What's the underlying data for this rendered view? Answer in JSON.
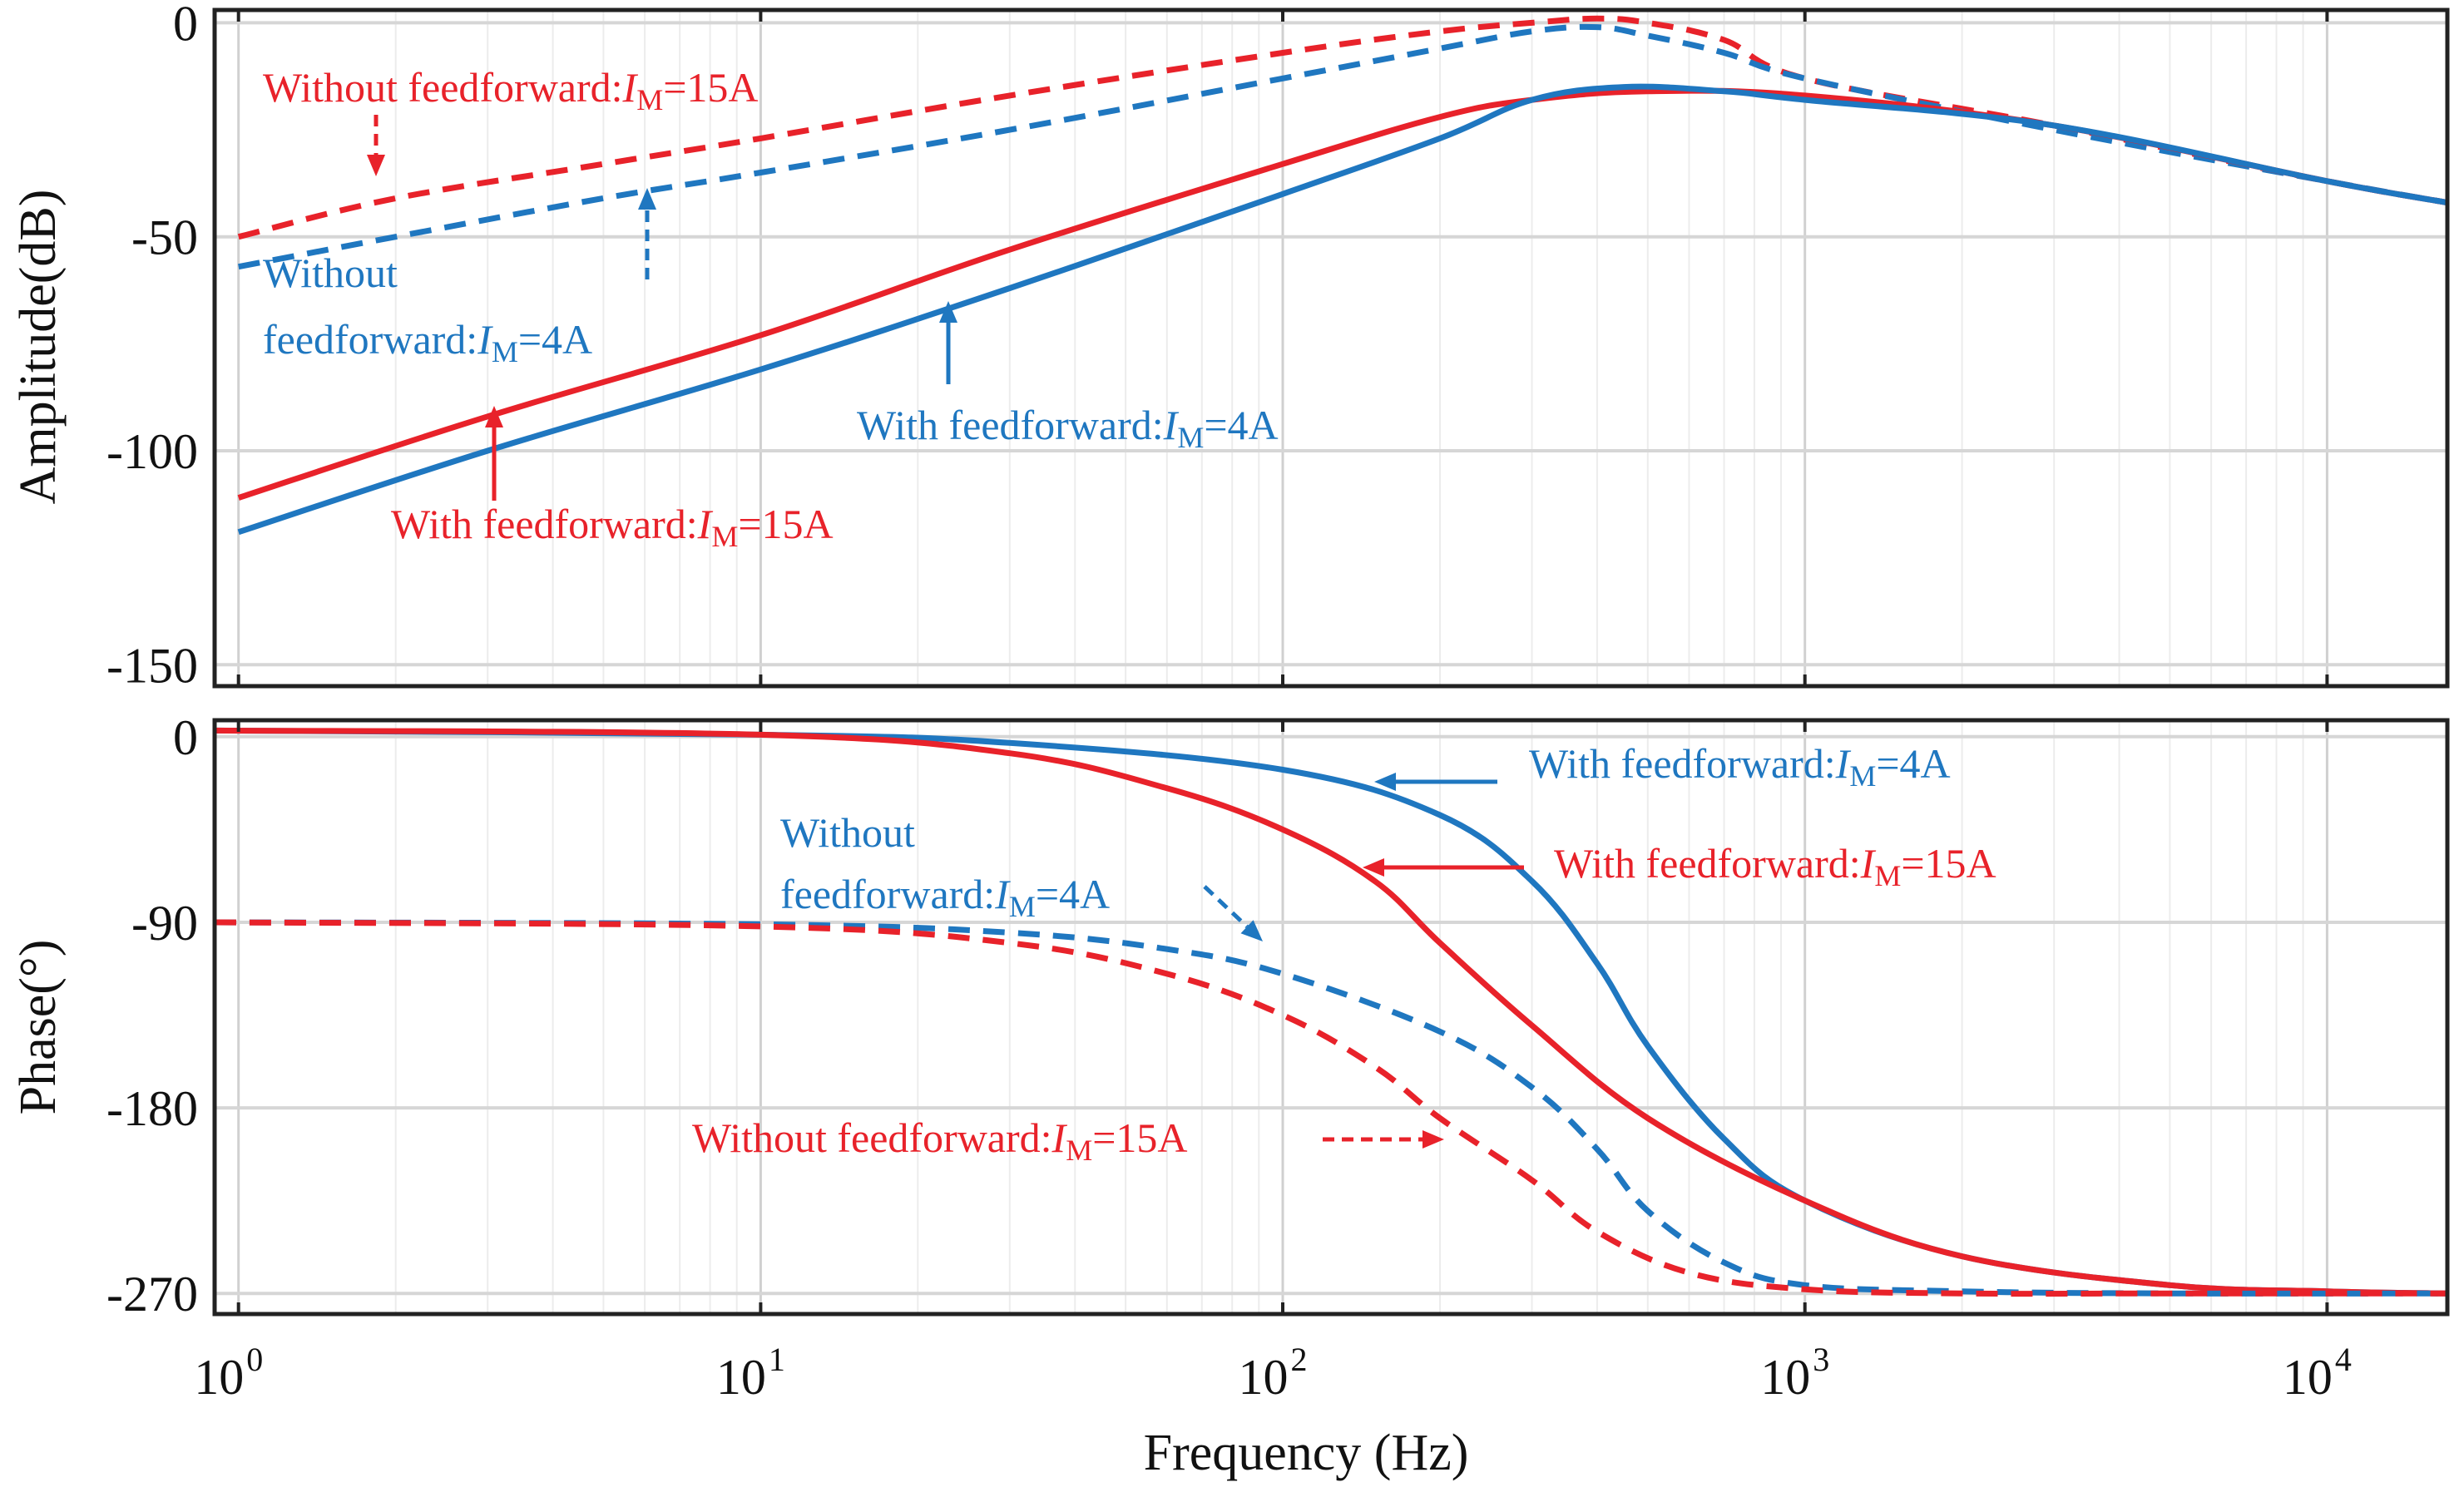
{
  "chart_data": [
    {
      "type": "line",
      "panel": "amplitude",
      "ylabel": "Amplitude(dB)",
      "xscale": "log",
      "xlim": [
        0.9,
        17000
      ],
      "ylim": [
        -155,
        3
      ],
      "yticks": [
        0,
        -50,
        -100,
        -150
      ],
      "ytick_labels": [
        "0",
        "-50",
        "-100",
        "-150"
      ],
      "grid": true,
      "series": [
        {
          "name": "Without feedforward: IM=15A",
          "color": "#e8222a",
          "dash": true,
          "x": [
            1,
            2,
            5,
            10,
            30,
            100,
            200,
            300,
            400,
            500,
            700,
            1000,
            3000,
            10000,
            17000
          ],
          "y": [
            -50,
            -41,
            -33,
            -27,
            -17,
            -7,
            -2,
            0,
            1,
            0,
            -4,
            -13,
            -24,
            -37,
            -42
          ]
        },
        {
          "name": "Without feedforward: IM=4A",
          "color": "#1f77c0",
          "dash": true,
          "x": [
            1,
            2,
            5,
            10,
            30,
            100,
            200,
            300,
            400,
            500,
            700,
            1000,
            3000,
            10000,
            17000
          ],
          "y": [
            -57,
            -50,
            -41,
            -35,
            -25,
            -13,
            -6,
            -2,
            -1,
            -3,
            -7,
            -13,
            -25,
            -37,
            -42
          ]
        },
        {
          "name": "With feedforward: IM=15A",
          "color": "#e8222a",
          "dash": false,
          "x": [
            1,
            3,
            10,
            30,
            100,
            200,
            300,
            500,
            1000,
            3000,
            10000,
            17000
          ],
          "y": [
            -111,
            -92,
            -73,
            -53,
            -33,
            -22,
            -18,
            -16,
            -17,
            -24,
            -37,
            -42
          ]
        },
        {
          "name": "With feedforward: IM=4A",
          "color": "#1f77c0",
          "dash": false,
          "x": [
            1,
            3,
            10,
            30,
            100,
            200,
            300,
            450,
            700,
            1000,
            3000,
            10000,
            17000
          ],
          "y": [
            -119,
            -100,
            -81,
            -62,
            -40,
            -27,
            -18,
            -15,
            -16,
            -18,
            -24,
            -37,
            -42
          ]
        }
      ],
      "annotations": [
        {
          "prefix": "Without feedforward:",
          "var": "I",
          "sub": "M",
          "suffix": "=15A",
          "color": "#e8222a"
        },
        {
          "prefix": "Without",
          "color": "#1f77c0"
        },
        {
          "prefix": "feedforward:",
          "var": "I",
          "sub": "M",
          "suffix": "=4A",
          "color": "#1f77c0"
        },
        {
          "prefix": "With feedforward:",
          "var": "I",
          "sub": "M",
          "suffix": "=4A",
          "color": "#1f77c0"
        },
        {
          "prefix": "With feedforward:",
          "var": "I",
          "sub": "M",
          "suffix": "=15A",
          "color": "#e8222a"
        }
      ]
    },
    {
      "type": "line",
      "panel": "phase",
      "ylabel": "Phase(°)",
      "xlabel": "Frequency (Hz)",
      "xscale": "log",
      "xlim": [
        0.9,
        17000
      ],
      "ylim": [
        -280,
        8
      ],
      "yticks": [
        0,
        -90,
        -180,
        -270
      ],
      "ytick_labels": [
        "0",
        "-90",
        "-180",
        "-270"
      ],
      "xtick_labels": [
        {
          "base": "10",
          "exp": "0"
        },
        {
          "base": "10",
          "exp": "1"
        },
        {
          "base": "10",
          "exp": "2"
        },
        {
          "base": "10",
          "exp": "3"
        },
        {
          "base": "10",
          "exp": "4"
        }
      ],
      "grid": true,
      "series": [
        {
          "name": "With feedforward: IM=4A",
          "color": "#1f77c0",
          "dash": false,
          "x": [
            0.9,
            10,
            30,
            100,
            200,
            300,
            400,
            500,
            700,
            1000,
            2000,
            5000,
            10000,
            17000
          ],
          "y": [
            3,
            1,
            -3,
            -16,
            -38,
            -70,
            -110,
            -150,
            -195,
            -225,
            -252,
            -266,
            -269,
            -270
          ]
        },
        {
          "name": "With feedforward: IM=15A",
          "color": "#e8222a",
          "dash": false,
          "x": [
            0.9,
            10,
            30,
            60,
            100,
            150,
            200,
            300,
            500,
            1000,
            2000,
            5000,
            10000,
            17000
          ],
          "y": [
            3,
            1,
            -8,
            -25,
            -45,
            -70,
            -100,
            -140,
            -185,
            -225,
            -252,
            -266,
            -269,
            -270
          ]
        },
        {
          "name": "Without feedforward: IM=4A",
          "color": "#1f77c0",
          "dash": true,
          "x": [
            0.9,
            10,
            30,
            60,
            100,
            200,
            300,
            400,
            500,
            700,
            1000,
            2000,
            5000,
            17000
          ],
          "y": [
            -90,
            -91,
            -95,
            -103,
            -115,
            -143,
            -170,
            -200,
            -230,
            -255,
            -266,
            -269,
            -270,
            -270
          ]
        },
        {
          "name": "Without feedforward: IM=15A",
          "color": "#e8222a",
          "dash": true,
          "x": [
            0.9,
            10,
            30,
            60,
            100,
            150,
            200,
            300,
            400,
            600,
            1000,
            2000,
            5000,
            17000
          ],
          "y": [
            -90,
            -92,
            -100,
            -115,
            -135,
            -160,
            -185,
            -215,
            -240,
            -260,
            -268,
            -270,
            -270,
            -270
          ]
        }
      ],
      "annotations": [
        {
          "prefix": "With feedforward:",
          "var": "I",
          "sub": "M",
          "suffix": "=4A",
          "color": "#1f77c0"
        },
        {
          "prefix": "With feedforward:",
          "var": "I",
          "sub": "M",
          "suffix": "=15A",
          "color": "#e8222a"
        },
        {
          "prefix": "Without",
          "color": "#1f77c0"
        },
        {
          "prefix": "feedforward:",
          "var": "I",
          "sub": "M",
          "suffix": "=4A",
          "color": "#1f77c0"
        },
        {
          "prefix": "Without feedforward:",
          "var": "I",
          "sub": "M",
          "suffix": "=15A",
          "color": "#e8222a"
        }
      ]
    }
  ]
}
